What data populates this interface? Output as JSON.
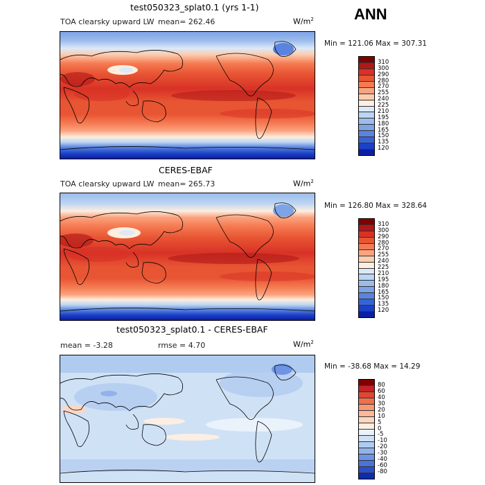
{
  "season": "ANN",
  "panels": [
    {
      "title": "test050323_splat0.1 (yrs 1-1)",
      "subtitle": "TOA clearsky upward LW",
      "stats": "mean= 262.46",
      "unit_base": "W/m",
      "unit_exp": "2",
      "minmax": "Min = 121.06 Max = 307.31",
      "colorbar": {
        "colors": [
          "#800000",
          "#b01818",
          "#d83226",
          "#e85533",
          "#f57a52",
          "#fba37f",
          "#fdcbad",
          "#fdeedf",
          "#dbe9f8",
          "#bcd5f2",
          "#9cbcec",
          "#7ea3e6",
          "#5a84df",
          "#3664d8",
          "#1b41c6",
          "#0a1fa6",
          "#000082"
        ],
        "labels": [
          "310",
          "300",
          "290",
          "280",
          "270",
          "255",
          "240",
          "225",
          "210",
          "195",
          "180",
          "165",
          "150",
          "135",
          "120"
        ]
      }
    },
    {
      "title": "CERES-EBAF",
      "subtitle": "TOA clearsky upward LW",
      "stats": "mean= 265.73",
      "unit_base": "W/m",
      "unit_exp": "2",
      "minmax": "Min = 126.80 Max = 328.64",
      "colorbar": {
        "colors": [
          "#800000",
          "#b01818",
          "#d83226",
          "#e85533",
          "#f57a52",
          "#fba37f",
          "#fdcbad",
          "#fdeedf",
          "#dbe9f8",
          "#bcd5f2",
          "#9cbcec",
          "#7ea3e6",
          "#5a84df",
          "#3664d8",
          "#1b41c6",
          "#0a1fa6",
          "#000082"
        ],
        "labels": [
          "310",
          "300",
          "290",
          "280",
          "270",
          "255",
          "240",
          "225",
          "210",
          "195",
          "180",
          "165",
          "150",
          "135",
          "120"
        ]
      }
    },
    {
      "title": "test050323_splat0.1 - CERES-EBAF",
      "stats_mean": "mean =  -3.28",
      "stats_rmse": "rmse =   4.70",
      "unit_base": "W/m",
      "unit_exp": "2",
      "minmax": "Min = -38.68 Max =  14.29",
      "colorbar": {
        "colors": [
          "#800000",
          "#c1232b",
          "#e04630",
          "#f0704a",
          "#f99673",
          "#fcb89b",
          "#fdd6c2",
          "#fdeee3",
          "#eaf2fb",
          "#cfe1f5",
          "#b0cbf0",
          "#91b2ea",
          "#6e94e3",
          "#4a73dc",
          "#2a4fcd",
          "#0f2cab",
          "#000082"
        ],
        "labels": [
          "80",
          "60",
          "40",
          "30",
          "20",
          "10",
          "5",
          "0",
          "-5",
          "-10",
          "-20",
          "-30",
          "-40",
          "-60",
          "-80"
        ]
      }
    }
  ]
}
